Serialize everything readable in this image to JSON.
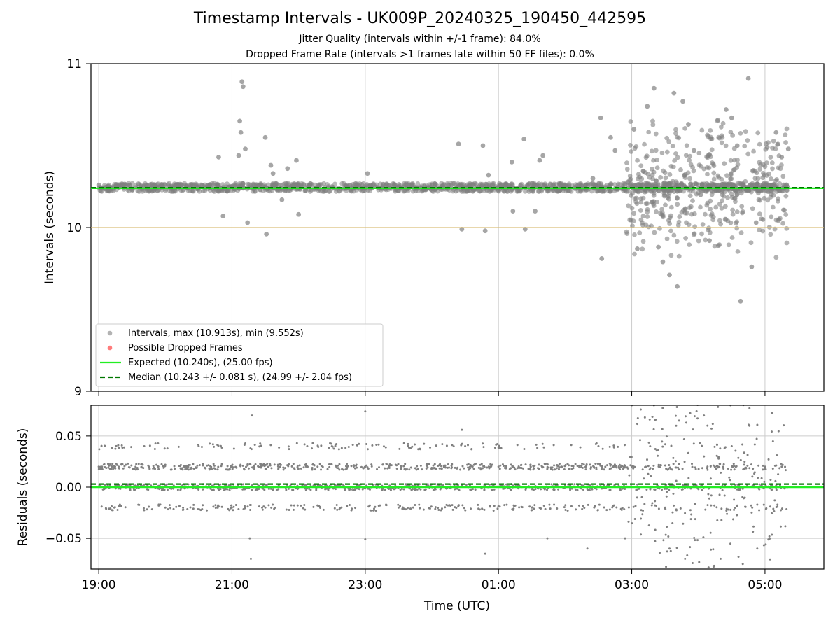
{
  "title": "Timestamp Intervals - UK009P_20240325_190450_442595",
  "subtitles": [
    "Jitter Quality (intervals within +/-1 frame): 84.0%",
    "Dropped Frame Rate (intervals >1 frames late within 50 FF files): 0.0%"
  ],
  "colors": {
    "points": "#808080",
    "dropped": "#ff4444",
    "expected": "#22ee22",
    "median": "#007700",
    "reference": "#d9bf7a",
    "grid": "#cccccc"
  },
  "chart_data": [
    {
      "type": "scatter",
      "xlabel": "",
      "ylabel": "Intervals (seconds)",
      "x_range": [
        "18:53",
        "05:53"
      ],
      "ylim": [
        9,
        11
      ],
      "yticks": [
        "9",
        "10",
        "11"
      ],
      "grid": "vertical",
      "reference_line": 10.0,
      "expected": 10.24,
      "median": 10.243,
      "legend_position": "lower-left",
      "legend": [
        "Intervals, max (10.913s), min (9.552s)",
        "Possible Dropped Frames",
        "Expected (10.240s), (25.00 fps)",
        "Median (10.243 +/- 0.081 s), (24.99 +/- 2.04 fps)"
      ],
      "series": [
        {
          "name": "Intervals, max (10.913s), min (9.552s)",
          "points": [
            [
              "19:00",
              10.26
            ],
            [
              "19:10",
              10.24
            ],
            [
              "19:20",
              10.25
            ],
            [
              "19:30",
              10.23
            ],
            [
              "19:40",
              10.25
            ],
            [
              "19:50",
              10.24
            ],
            [
              "20:00",
              10.26
            ],
            [
              "20:10",
              10.25
            ],
            [
              "20:20",
              10.24
            ],
            [
              "20:30",
              10.25
            ],
            [
              "20:40",
              10.26
            ],
            [
              "20:50",
              10.24
            ],
            [
              "21:00",
              10.25
            ],
            [
              "21:10",
              10.24
            ],
            [
              "21:20",
              10.26
            ],
            [
              "21:30",
              10.25
            ],
            [
              "21:40",
              10.24
            ],
            [
              "21:50",
              10.25
            ],
            [
              "22:00",
              10.24
            ],
            [
              "22:30",
              10.25
            ],
            [
              "23:00",
              10.24
            ],
            [
              "23:30",
              10.25
            ],
            [
              "00:00",
              10.26
            ],
            [
              "00:30",
              10.24
            ],
            [
              "01:00",
              10.25
            ],
            [
              "01:30",
              10.24
            ],
            [
              "02:00",
              10.25
            ],
            [
              "02:30",
              10.24
            ],
            [
              "03:00",
              10.25
            ],
            [
              "03:30",
              10.26
            ],
            [
              "04:00",
              10.24
            ],
            [
              "04:30",
              10.25
            ],
            [
              "05:00",
              10.24
            ],
            [
              "05:20",
              10.25
            ],
            [
              "20:48",
              10.43
            ],
            [
              "20:52",
              10.07
            ],
            [
              "21:06",
              10.44
            ],
            [
              "21:07",
              10.65
            ],
            [
              "21:08",
              10.58
            ],
            [
              "21:09",
              10.89
            ],
            [
              "21:10",
              10.86
            ],
            [
              "21:12",
              10.48
            ],
            [
              "21:14",
              10.03
            ],
            [
              "21:30",
              10.55
            ],
            [
              "21:31",
              9.96
            ],
            [
              "21:35",
              10.38
            ],
            [
              "21:37",
              10.33
            ],
            [
              "21:45",
              10.17
            ],
            [
              "21:50",
              10.36
            ],
            [
              "21:58",
              10.41
            ],
            [
              "22:00",
              10.08
            ],
            [
              "23:02",
              10.33
            ],
            [
              "00:24",
              10.51
            ],
            [
              "00:27",
              9.99
            ],
            [
              "00:46",
              10.5
            ],
            [
              "00:48",
              9.98
            ],
            [
              "00:51",
              10.32
            ],
            [
              "01:08",
              10.22
            ],
            [
              "01:12",
              10.4
            ],
            [
              "01:13",
              10.1
            ],
            [
              "01:23",
              10.54
            ],
            [
              "01:24",
              9.99
            ],
            [
              "01:33",
              10.1
            ],
            [
              "01:37",
              10.41
            ],
            [
              "01:40",
              10.44
            ],
            [
              "02:25",
              10.3
            ],
            [
              "02:32",
              10.67
            ],
            [
              "02:33",
              9.81
            ],
            [
              "02:41",
              10.55
            ],
            [
              "02:45",
              10.47
            ],
            [
              "03:02",
              10.6
            ],
            [
              "03:05",
              9.87
            ],
            [
              "03:14",
              10.74
            ],
            [
              "03:20",
              10.85
            ],
            [
              "03:24",
              9.88
            ],
            [
              "03:28",
              9.79
            ],
            [
              "03:34",
              9.71
            ],
            [
              "03:38",
              10.82
            ],
            [
              "03:41",
              9.64
            ],
            [
              "03:46",
              10.77
            ],
            [
              "03:51",
              10.63
            ],
            [
              "03:56",
              10.47
            ],
            [
              "04:02",
              10.2
            ],
            [
              "04:10",
              9.92
            ],
            [
              "04:18",
              9.89
            ],
            [
              "04:25",
              10.72
            ],
            [
              "04:30",
              10.67
            ],
            [
              "04:35",
              10.5
            ],
            [
              "04:38",
              9.55
            ],
            [
              "04:45",
              10.91
            ],
            [
              "04:48",
              9.76
            ],
            [
              "04:52",
              10.03
            ],
            [
              "05:02",
              10.49
            ],
            [
              "05:10",
              10.58
            ],
            [
              "05:15",
              10.43
            ],
            [
              "05:21",
              10.48
            ]
          ]
        }
      ]
    },
    {
      "type": "scatter",
      "xlabel": "Time (UTC)",
      "ylabel": "Residuals (seconds)",
      "x_range": [
        "18:53",
        "05:53"
      ],
      "ylim": [
        -0.08,
        0.08
      ],
      "yticks": [
        "−0.05",
        "0.00",
        "0.05"
      ],
      "xticks": [
        "19:00",
        "21:00",
        "23:00",
        "01:00",
        "03:00",
        "05:00"
      ],
      "grid": "both",
      "expected": 0.0,
      "median": 0.003,
      "bands": [
        -0.02,
        0.0,
        0.02,
        0.04
      ],
      "series": [
        {
          "name": "",
          "points": [
            [
              "19:00",
              0.02
            ],
            [
              "19:30",
              0.0
            ],
            [
              "20:00",
              -0.02
            ],
            [
              "20:30",
              0.04
            ],
            [
              "21:00",
              0.02
            ],
            [
              "21:30",
              -0.02
            ],
            [
              "22:00",
              0.0
            ],
            [
              "22:30",
              0.04
            ],
            [
              "23:00",
              0.02
            ],
            [
              "23:30",
              -0.02
            ],
            [
              "00:00",
              0.0
            ],
            [
              "00:30",
              0.04
            ],
            [
              "01:00",
              0.02
            ],
            [
              "01:30",
              -0.02
            ],
            [
              "02:00",
              0.0
            ],
            [
              "02:30",
              0.04
            ],
            [
              "03:00",
              0.02
            ],
            [
              "03:30",
              -0.02
            ],
            [
              "04:00",
              0.0
            ],
            [
              "04:30",
              0.04
            ],
            [
              "05:00",
              0.02
            ],
            [
              "05:20",
              0.0
            ],
            [
              "21:18",
              0.07
            ],
            [
              "21:16",
              -0.05
            ],
            [
              "21:17",
              -0.07
            ],
            [
              "23:00",
              0.074
            ],
            [
              "23:00",
              -0.051
            ],
            [
              "00:27",
              0.056
            ],
            [
              "00:48",
              -0.065
            ],
            [
              "01:44",
              -0.05
            ],
            [
              "02:20",
              -0.06
            ],
            [
              "02:54",
              -0.05
            ],
            [
              "03:00",
              0.08
            ],
            [
              "03:20",
              0.08
            ],
            [
              "03:34",
              -0.06
            ],
            [
              "03:40",
              0.06
            ],
            [
              "03:48",
              -0.07
            ],
            [
              "04:05",
              0.07
            ],
            [
              "04:20",
              -0.07
            ],
            [
              "04:29",
              0.08
            ],
            [
              "04:40",
              -0.075
            ],
            [
              "04:46",
              0.06
            ],
            [
              "04:53",
              -0.06
            ]
          ]
        }
      ]
    }
  ]
}
